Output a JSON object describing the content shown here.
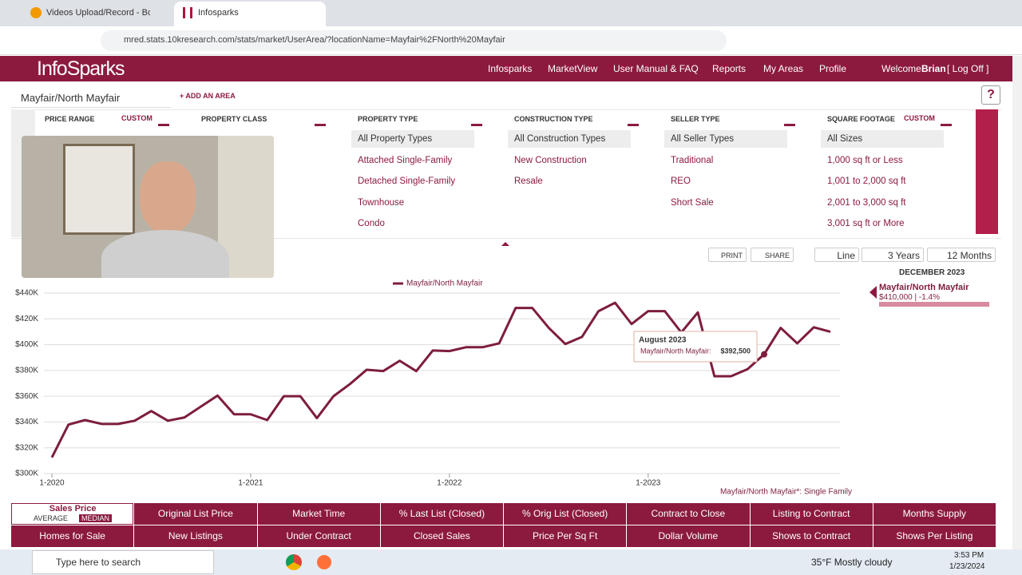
{
  "browser": {
    "tabs": [
      "Videos Upload/Record - Bombb",
      "Infosparks"
    ],
    "url": "mred.stats.10kresearch.com/stats/market/UserArea/?locationName=Mayfair%2FNorth%20Mayfair"
  },
  "nav": {
    "logo": "InfoSparks",
    "items": [
      "Infosparks",
      "MarketView",
      "User Manual & FAQ",
      "Reports",
      "My Areas",
      "Profile"
    ],
    "welcome": "Welcome",
    "user": "Brian",
    "logoff": "[ Log Off ]"
  },
  "area": {
    "name": "Mayfair/North Mayfair",
    "add": "+ ADD AN AREA"
  },
  "filters": [
    {
      "title": "PRICE RANGE",
      "custom": "CUSTOM"
    },
    {
      "title": "PROPERTY CLASS"
    },
    {
      "title": "PROPERTY TYPE",
      "options": [
        "All Property Types",
        "Attached Single-Family",
        "Detached Single-Family",
        "Townhouse",
        "Condo"
      ]
    },
    {
      "title": "CONSTRUCTION TYPE",
      "options": [
        "All Construction Types",
        "New Construction",
        "Resale"
      ]
    },
    {
      "title": "SELLER TYPE",
      "options": [
        "All Seller Types",
        "Traditional",
        "REO",
        "Short Sale"
      ]
    },
    {
      "title": "SQUARE FOOTAGE",
      "custom": "CUSTOM",
      "options": [
        "All Sizes",
        "1,000 sq ft or Less",
        "1,001 to 2,000 sq ft",
        "2,001 to 3,000 sq ft",
        "3,001 sq ft or More"
      ]
    }
  ],
  "toolbar": {
    "print": "PRINT",
    "share": "SHARE",
    "type": "Line",
    "range": "3 Years",
    "period": "12 Months"
  },
  "chart_data": {
    "type": "line",
    "categories": [
      "1-2020",
      null,
      null,
      null,
      null,
      null,
      null,
      null,
      null,
      null,
      null,
      null,
      "1-2021",
      null,
      null,
      null,
      null,
      null,
      null,
      null,
      null,
      null,
      null,
      null,
      "1-2022",
      null,
      null,
      null,
      null,
      null,
      null,
      null,
      null,
      null,
      null,
      null,
      "1-2023",
      null,
      null,
      null,
      null,
      null,
      null,
      null,
      null,
      null,
      null,
      null
    ],
    "series": [
      {
        "name": "Mayfair/North Mayfair",
        "color": "#7d1d3f",
        "values": [
          312500,
          338000,
          341500,
          338500,
          338500,
          341000,
          348500,
          341000,
          343500,
          352000,
          360500,
          346000,
          346000,
          341500,
          360000,
          360000,
          343000,
          360000,
          369500,
          380500,
          379500,
          387500,
          379500,
          395500,
          395000,
          398000,
          398000,
          401000,
          428500,
          428500,
          413000,
          400500,
          406000,
          426000,
          432500,
          416000,
          426000,
          426000,
          409500,
          425000,
          375500,
          375500,
          381000,
          392500,
          413000,
          401000,
          413500,
          410000
        ]
      }
    ],
    "ylim": [
      300000,
      440000
    ],
    "yticks": [
      {
        "value": 300000,
        "label": "$300K"
      },
      {
        "value": 320000,
        "label": "$320K"
      },
      {
        "value": 340000,
        "label": "$340K"
      },
      {
        "value": 360000,
        "label": "$360K"
      },
      {
        "value": 380000,
        "label": "$380K"
      },
      {
        "value": 400000,
        "label": "$400K"
      },
      {
        "value": 420000,
        "label": "$420K"
      },
      {
        "value": 440000,
        "label": "$440K"
      }
    ],
    "grid": true,
    "legend": "top",
    "tooltip": {
      "title": "August 2023",
      "label": "Mayfair/North Mayfair:",
      "value": "$392,500"
    },
    "footnote": "Mayfair/North Mayfair*: Single Family"
  },
  "side_panel": {
    "month": "DECEMBER 2023",
    "summary": "$410,000 | -1.4%"
  },
  "metrics": {
    "active": {
      "title": "Sales Price",
      "options": [
        "AVERAGE",
        "MEDIAN"
      ]
    },
    "tabs": [
      "Original List Price",
      "Market Time",
      "% Last List (Closed)",
      "% Orig List (Closed)",
      "Contract to Close",
      "Listing to Contract",
      "Months Supply",
      "Homes for Sale",
      "New Listings",
      "Under Contract",
      "Closed Sales",
      "Price Per Sq Ft",
      "Dollar Volume",
      "Shows to Contract",
      "Shows Per Listing"
    ]
  },
  "taskbar": {
    "search": "Type here to search",
    "weather": "35°F Mostly cloudy",
    "time": "3:53 PM",
    "date": "1/23/2024"
  }
}
